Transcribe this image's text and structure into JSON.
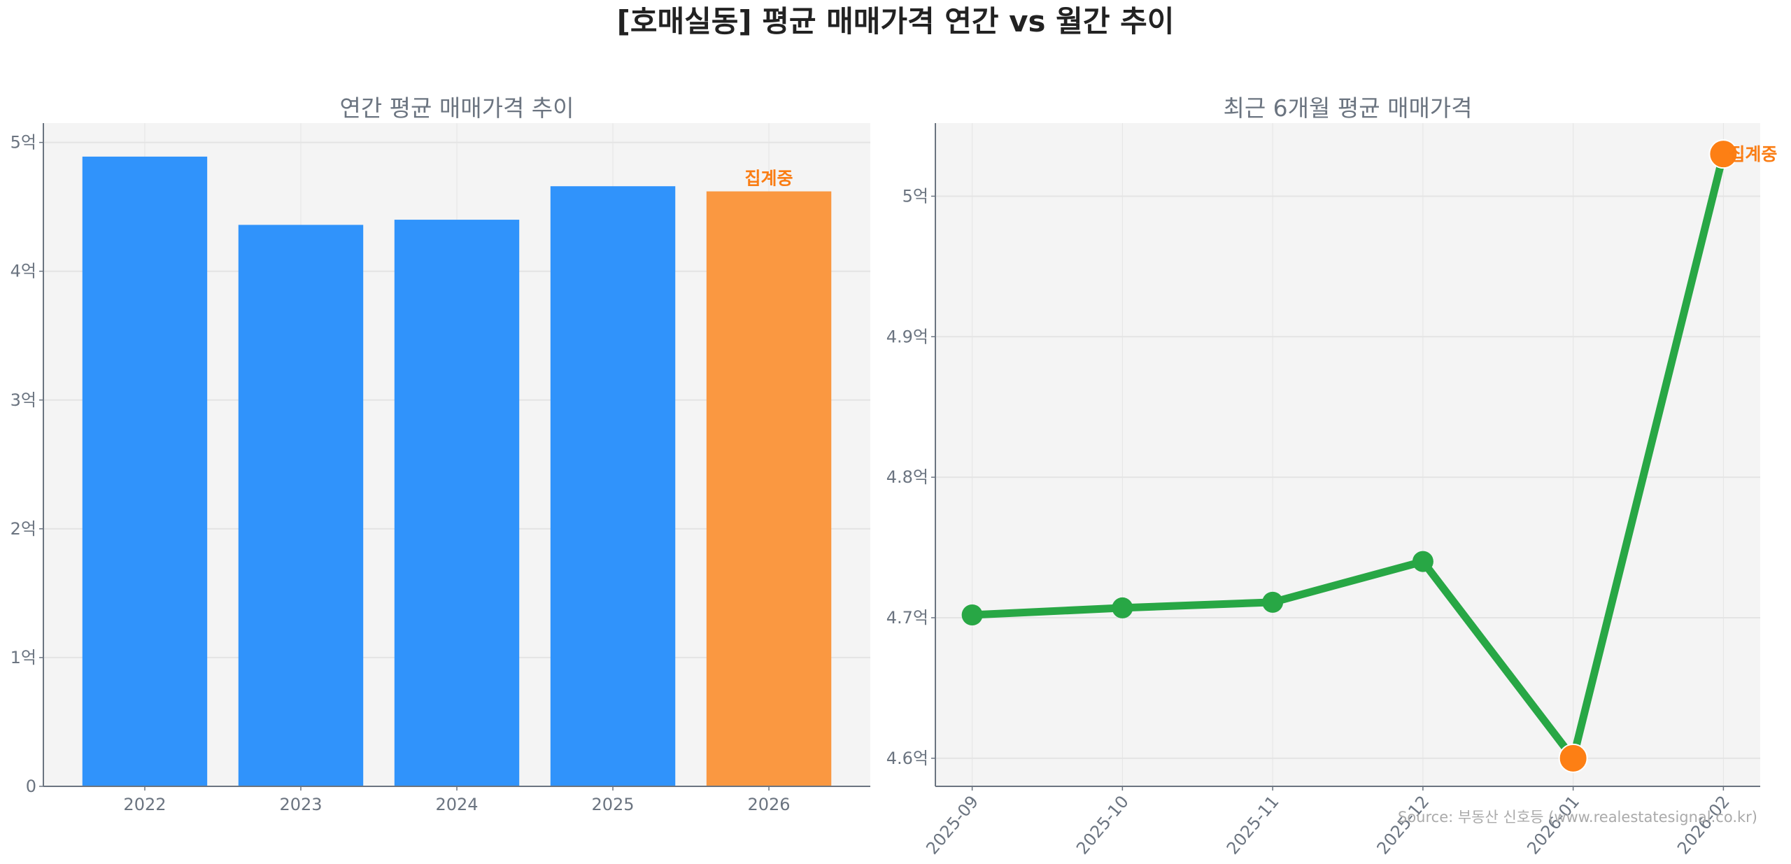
{
  "title": "[호매실동] 평균 매매가격 연간 vs 월간 추이",
  "source": "Source: 부동산 신호등 (www.realestatesignal.co.kr)",
  "chart_data": [
    {
      "type": "bar",
      "title": "연간 평균 매매가격 추이",
      "categories": [
        "2022",
        "2023",
        "2024",
        "2025",
        "2026"
      ],
      "values": [
        4.89,
        4.36,
        4.4,
        4.66,
        4.62
      ],
      "unit": "억",
      "yticks": [
        "0",
        "1억",
        "2억",
        "3억",
        "4억",
        "5억"
      ],
      "ylim": [
        0,
        5.15
      ],
      "grid": true,
      "colors": [
        "#3093fb",
        "#3093fb",
        "#3093fb",
        "#3093fb",
        "#fa9841"
      ],
      "annotations": [
        {
          "category": "2026",
          "text": "집계중",
          "color": "#fa7d14"
        }
      ]
    },
    {
      "type": "line",
      "title": "최근 6개월 평균 매매가격",
      "x": [
        "2025-09",
        "2025-10",
        "2025-11",
        "2025-12",
        "2026-01",
        "2026-02"
      ],
      "values": [
        4.702,
        4.707,
        4.711,
        4.74,
        4.6,
        5.03
      ],
      "unit": "억",
      "yticks": [
        "4.6억",
        "4.7억",
        "4.8억",
        "4.9억",
        "5억"
      ],
      "ylim": [
        4.58,
        5.052
      ],
      "grid": true,
      "line_color": "#28a745",
      "highlight_color": "#fd7f14",
      "highlighted_points": [
        "2026-01",
        "2026-02"
      ],
      "annotations": [
        {
          "x": "2026-02",
          "text": "집계중",
          "color": "#fa7d14"
        }
      ]
    }
  ]
}
